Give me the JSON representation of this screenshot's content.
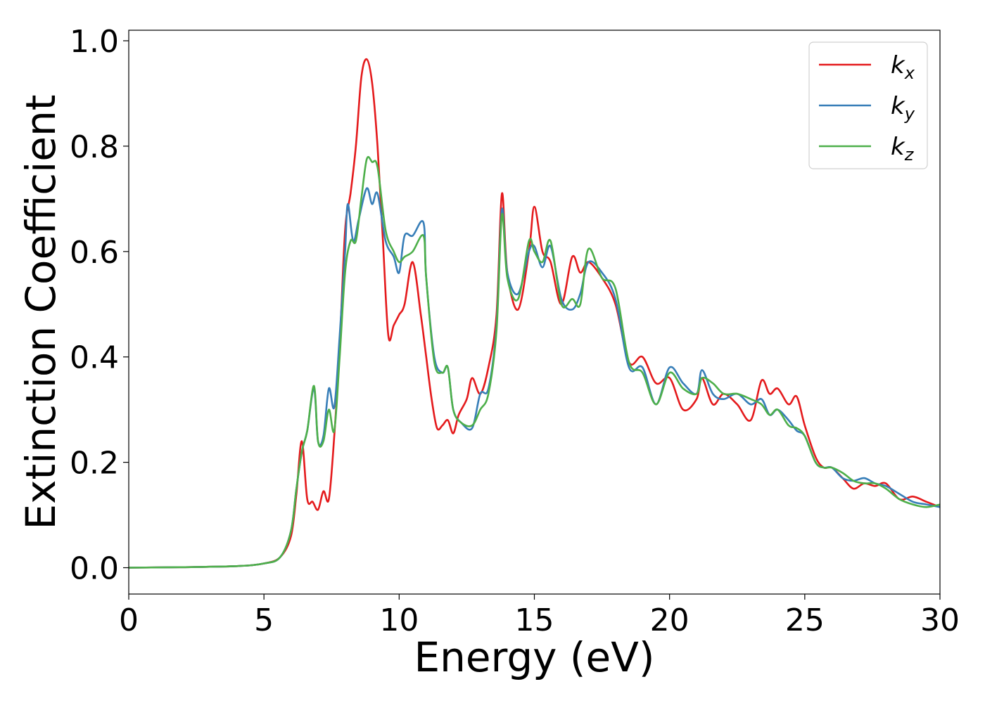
{
  "chart_data": {
    "type": "line",
    "title": "",
    "xlabel": "Energy (eV)",
    "ylabel": "Extinction Coefficient",
    "xlim": [
      0,
      30
    ],
    "ylim": [
      -0.05,
      1.02
    ],
    "xticks": [
      0,
      5,
      10,
      15,
      20,
      25,
      30
    ],
    "xtick_labels": [
      "0",
      "5",
      "10",
      "15",
      "20",
      "25",
      "30"
    ],
    "yticks": [
      0.0,
      0.2,
      0.4,
      0.6,
      0.8,
      1.0
    ],
    "ytick_labels": [
      "0.0",
      "0.2",
      "0.4",
      "0.6",
      "0.8",
      "1.0"
    ],
    "grid": false,
    "legend_position": "top-right",
    "series": [
      {
        "name": "k_x",
        "label_main": "k",
        "label_sub": "x",
        "color": "#e41a1c",
        "points": [
          [
            0,
            0.0
          ],
          [
            2,
            0.001
          ],
          [
            4,
            0.003
          ],
          [
            5,
            0.008
          ],
          [
            5.6,
            0.02
          ],
          [
            6.0,
            0.06
          ],
          [
            6.2,
            0.14
          ],
          [
            6.4,
            0.24
          ],
          [
            6.6,
            0.13
          ],
          [
            6.8,
            0.125
          ],
          [
            7.0,
            0.11
          ],
          [
            7.2,
            0.145
          ],
          [
            7.4,
            0.13
          ],
          [
            7.6,
            0.25
          ],
          [
            7.8,
            0.42
          ],
          [
            8.0,
            0.64
          ],
          [
            8.2,
            0.71
          ],
          [
            8.4,
            0.8
          ],
          [
            8.6,
            0.93
          ],
          [
            8.8,
            0.965
          ],
          [
            9.0,
            0.92
          ],
          [
            9.2,
            0.8
          ],
          [
            9.4,
            0.62
          ],
          [
            9.6,
            0.44
          ],
          [
            9.8,
            0.46
          ],
          [
            10.0,
            0.48
          ],
          [
            10.2,
            0.5
          ],
          [
            10.5,
            0.58
          ],
          [
            10.8,
            0.48
          ],
          [
            11.0,
            0.4
          ],
          [
            11.2,
            0.32
          ],
          [
            11.4,
            0.265
          ],
          [
            11.6,
            0.27
          ],
          [
            11.8,
            0.28
          ],
          [
            12.0,
            0.255
          ],
          [
            12.2,
            0.29
          ],
          [
            12.5,
            0.32
          ],
          [
            12.7,
            0.36
          ],
          [
            13.0,
            0.33
          ],
          [
            13.3,
            0.38
          ],
          [
            13.6,
            0.48
          ],
          [
            13.8,
            0.71
          ],
          [
            14.0,
            0.56
          ],
          [
            14.4,
            0.49
          ],
          [
            14.8,
            0.6
          ],
          [
            15.0,
            0.685
          ],
          [
            15.3,
            0.6
          ],
          [
            15.6,
            0.58
          ],
          [
            16.0,
            0.5
          ],
          [
            16.4,
            0.59
          ],
          [
            16.7,
            0.56
          ],
          [
            17.0,
            0.58
          ],
          [
            17.5,
            0.55
          ],
          [
            18.0,
            0.5
          ],
          [
            18.5,
            0.39
          ],
          [
            19.0,
            0.4
          ],
          [
            19.5,
            0.35
          ],
          [
            20.0,
            0.36
          ],
          [
            20.5,
            0.3
          ],
          [
            21.0,
            0.32
          ],
          [
            21.2,
            0.36
          ],
          [
            21.6,
            0.31
          ],
          [
            22.0,
            0.33
          ],
          [
            22.5,
            0.31
          ],
          [
            23.0,
            0.28
          ],
          [
            23.4,
            0.355
          ],
          [
            23.7,
            0.33
          ],
          [
            24.0,
            0.34
          ],
          [
            24.4,
            0.31
          ],
          [
            24.7,
            0.325
          ],
          [
            25.0,
            0.27
          ],
          [
            25.4,
            0.21
          ],
          [
            25.7,
            0.19
          ],
          [
            26.0,
            0.19
          ],
          [
            26.4,
            0.17
          ],
          [
            26.8,
            0.15
          ],
          [
            27.2,
            0.16
          ],
          [
            27.6,
            0.155
          ],
          [
            28.0,
            0.16
          ],
          [
            28.5,
            0.13
          ],
          [
            29.0,
            0.135
          ],
          [
            29.5,
            0.125
          ],
          [
            30.0,
            0.115
          ]
        ]
      },
      {
        "name": "k_y",
        "label_main": "k",
        "label_sub": "y",
        "color": "#377eb8",
        "points": [
          [
            0,
            0.0
          ],
          [
            2,
            0.001
          ],
          [
            4,
            0.003
          ],
          [
            5,
            0.008
          ],
          [
            5.6,
            0.02
          ],
          [
            6.0,
            0.07
          ],
          [
            6.2,
            0.15
          ],
          [
            6.4,
            0.22
          ],
          [
            6.6,
            0.26
          ],
          [
            6.85,
            0.34
          ],
          [
            7.0,
            0.24
          ],
          [
            7.2,
            0.25
          ],
          [
            7.4,
            0.34
          ],
          [
            7.6,
            0.305
          ],
          [
            7.8,
            0.44
          ],
          [
            8.0,
            0.6
          ],
          [
            8.1,
            0.69
          ],
          [
            8.3,
            0.62
          ],
          [
            8.5,
            0.66
          ],
          [
            8.8,
            0.72
          ],
          [
            9.0,
            0.69
          ],
          [
            9.2,
            0.71
          ],
          [
            9.5,
            0.62
          ],
          [
            9.8,
            0.59
          ],
          [
            10.0,
            0.56
          ],
          [
            10.2,
            0.63
          ],
          [
            10.5,
            0.63
          ],
          [
            10.9,
            0.655
          ],
          [
            11.0,
            0.55
          ],
          [
            11.3,
            0.4
          ],
          [
            11.6,
            0.37
          ],
          [
            11.8,
            0.38
          ],
          [
            12.0,
            0.3
          ],
          [
            12.3,
            0.275
          ],
          [
            12.7,
            0.265
          ],
          [
            13.0,
            0.33
          ],
          [
            13.3,
            0.34
          ],
          [
            13.6,
            0.46
          ],
          [
            13.8,
            0.68
          ],
          [
            14.0,
            0.56
          ],
          [
            14.4,
            0.52
          ],
          [
            14.8,
            0.6
          ],
          [
            15.0,
            0.61
          ],
          [
            15.3,
            0.57
          ],
          [
            15.6,
            0.61
          ],
          [
            16.0,
            0.51
          ],
          [
            16.4,
            0.49
          ],
          [
            16.7,
            0.52
          ],
          [
            17.0,
            0.58
          ],
          [
            17.5,
            0.56
          ],
          [
            18.0,
            0.51
          ],
          [
            18.5,
            0.38
          ],
          [
            19.0,
            0.38
          ],
          [
            19.5,
            0.31
          ],
          [
            20.0,
            0.38
          ],
          [
            20.5,
            0.35
          ],
          [
            21.0,
            0.33
          ],
          [
            21.2,
            0.375
          ],
          [
            21.6,
            0.33
          ],
          [
            22.0,
            0.32
          ],
          [
            22.5,
            0.33
          ],
          [
            23.0,
            0.31
          ],
          [
            23.4,
            0.32
          ],
          [
            23.7,
            0.29
          ],
          [
            24.0,
            0.3
          ],
          [
            24.4,
            0.28
          ],
          [
            24.7,
            0.26
          ],
          [
            25.0,
            0.25
          ],
          [
            25.4,
            0.2
          ],
          [
            25.7,
            0.19
          ],
          [
            26.0,
            0.19
          ],
          [
            26.4,
            0.17
          ],
          [
            26.8,
            0.165
          ],
          [
            27.2,
            0.17
          ],
          [
            27.6,
            0.16
          ],
          [
            28.0,
            0.155
          ],
          [
            28.5,
            0.14
          ],
          [
            29.0,
            0.125
          ],
          [
            29.5,
            0.12
          ],
          [
            30.0,
            0.115
          ]
        ]
      },
      {
        "name": "k_z",
        "label_main": "k",
        "label_sub": "z",
        "color": "#4daf4a",
        "points": [
          [
            0,
            0.0
          ],
          [
            2,
            0.001
          ],
          [
            4,
            0.003
          ],
          [
            5,
            0.008
          ],
          [
            5.6,
            0.02
          ],
          [
            6.0,
            0.07
          ],
          [
            6.2,
            0.15
          ],
          [
            6.4,
            0.22
          ],
          [
            6.6,
            0.26
          ],
          [
            6.85,
            0.345
          ],
          [
            7.0,
            0.24
          ],
          [
            7.2,
            0.24
          ],
          [
            7.4,
            0.3
          ],
          [
            7.6,
            0.26
          ],
          [
            7.8,
            0.4
          ],
          [
            8.0,
            0.56
          ],
          [
            8.2,
            0.62
          ],
          [
            8.4,
            0.62
          ],
          [
            8.6,
            0.7
          ],
          [
            8.8,
            0.775
          ],
          [
            9.0,
            0.77
          ],
          [
            9.2,
            0.76
          ],
          [
            9.5,
            0.64
          ],
          [
            9.8,
            0.6
          ],
          [
            10.0,
            0.58
          ],
          [
            10.2,
            0.59
          ],
          [
            10.5,
            0.6
          ],
          [
            10.9,
            0.63
          ],
          [
            11.0,
            0.55
          ],
          [
            11.3,
            0.39
          ],
          [
            11.6,
            0.37
          ],
          [
            11.8,
            0.38
          ],
          [
            12.0,
            0.3
          ],
          [
            12.3,
            0.275
          ],
          [
            12.7,
            0.27
          ],
          [
            13.0,
            0.3
          ],
          [
            13.3,
            0.33
          ],
          [
            13.6,
            0.45
          ],
          [
            13.8,
            0.67
          ],
          [
            14.0,
            0.55
          ],
          [
            14.4,
            0.51
          ],
          [
            14.8,
            0.62
          ],
          [
            15.0,
            0.6
          ],
          [
            15.3,
            0.58
          ],
          [
            15.6,
            0.62
          ],
          [
            16.0,
            0.5
          ],
          [
            16.4,
            0.51
          ],
          [
            16.7,
            0.5
          ],
          [
            17.0,
            0.605
          ],
          [
            17.5,
            0.55
          ],
          [
            18.0,
            0.53
          ],
          [
            18.5,
            0.39
          ],
          [
            19.0,
            0.37
          ],
          [
            19.5,
            0.31
          ],
          [
            20.0,
            0.37
          ],
          [
            20.5,
            0.34
          ],
          [
            21.0,
            0.33
          ],
          [
            21.2,
            0.36
          ],
          [
            21.6,
            0.35
          ],
          [
            22.0,
            0.33
          ],
          [
            22.5,
            0.33
          ],
          [
            23.0,
            0.32
          ],
          [
            23.4,
            0.31
          ],
          [
            23.7,
            0.29
          ],
          [
            24.0,
            0.3
          ],
          [
            24.4,
            0.27
          ],
          [
            24.7,
            0.265
          ],
          [
            25.0,
            0.25
          ],
          [
            25.4,
            0.2
          ],
          [
            25.7,
            0.19
          ],
          [
            26.0,
            0.19
          ],
          [
            26.4,
            0.18
          ],
          [
            26.8,
            0.165
          ],
          [
            27.2,
            0.16
          ],
          [
            27.6,
            0.16
          ],
          [
            28.0,
            0.15
          ],
          [
            28.5,
            0.13
          ],
          [
            29.0,
            0.12
          ],
          [
            29.5,
            0.115
          ],
          [
            30.0,
            0.12
          ]
        ]
      }
    ]
  }
}
